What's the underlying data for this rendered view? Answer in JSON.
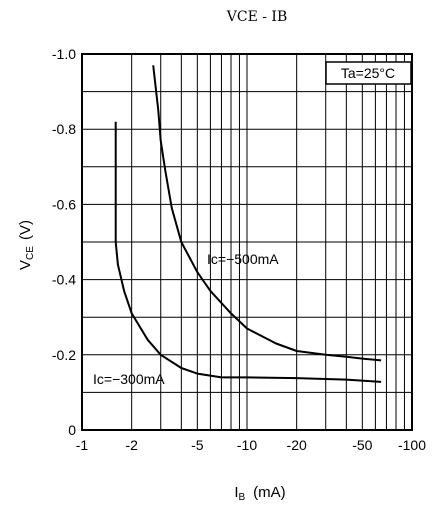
{
  "chart_data": {
    "type": "line",
    "title": "VCE - IB",
    "x_scale": "log",
    "xlim": [
      -1,
      -100
    ],
    "ylim": [
      0,
      -1.0
    ],
    "x_ticks": [
      {
        "value": -1,
        "label": "-1"
      },
      {
        "value": -2,
        "label": "-2"
      },
      {
        "value": -5,
        "label": "-5"
      },
      {
        "value": -10,
        "label": "-10"
      },
      {
        "value": -20,
        "label": "-20"
      },
      {
        "value": -50,
        "label": "-50"
      },
      {
        "value": -100,
        "label": "-100"
      }
    ],
    "y_ticks": [
      {
        "value": 0,
        "label": "0"
      },
      {
        "value": -0.2,
        "label": "-0.2"
      },
      {
        "value": -0.4,
        "label": "-0.4"
      },
      {
        "value": -0.6,
        "label": "-0.6"
      },
      {
        "value": -0.8,
        "label": "-0.8"
      },
      {
        "value": -1.0,
        "label": "-1.0"
      }
    ],
    "xlabel": {
      "main": "I",
      "sub": "B",
      "unit": "(mA)"
    },
    "ylabel": {
      "main": "V",
      "sub": "CE",
      "unit": "(V)"
    },
    "legend_box": "Ta=25°C",
    "grid": true,
    "series": [
      {
        "name": "Ic=−500mA",
        "x": [
          -2.7,
          -2.9,
          -3.0,
          -3.2,
          -3.5,
          -4.0,
          -5.0,
          -6.0,
          -8.0,
          -10,
          -15,
          -20,
          -30,
          -40,
          -50,
          -65
        ],
        "y": [
          -0.97,
          -0.85,
          -0.77,
          -0.69,
          -0.59,
          -0.5,
          -0.42,
          -0.37,
          -0.31,
          -0.27,
          -0.23,
          -0.21,
          -0.2,
          -0.195,
          -0.19,
          -0.185
        ]
      },
      {
        "name": "Ic=−300mA",
        "x": [
          -1.6,
          -1.6,
          -1.65,
          -1.8,
          -2.0,
          -2.5,
          -3.0,
          -4.0,
          -5.0,
          -7.0,
          -10,
          -20,
          -40,
          -65
        ],
        "y": [
          -0.82,
          -0.5,
          -0.44,
          -0.37,
          -0.31,
          -0.24,
          -0.2,
          -0.165,
          -0.15,
          -0.14,
          -0.14,
          -0.138,
          -0.134,
          -0.128
        ]
      }
    ],
    "annotations": [
      {
        "text": "Ic=−500mA",
        "target_series": 0
      },
      {
        "text": "Ic=−300mA",
        "target_series": 1
      }
    ]
  }
}
